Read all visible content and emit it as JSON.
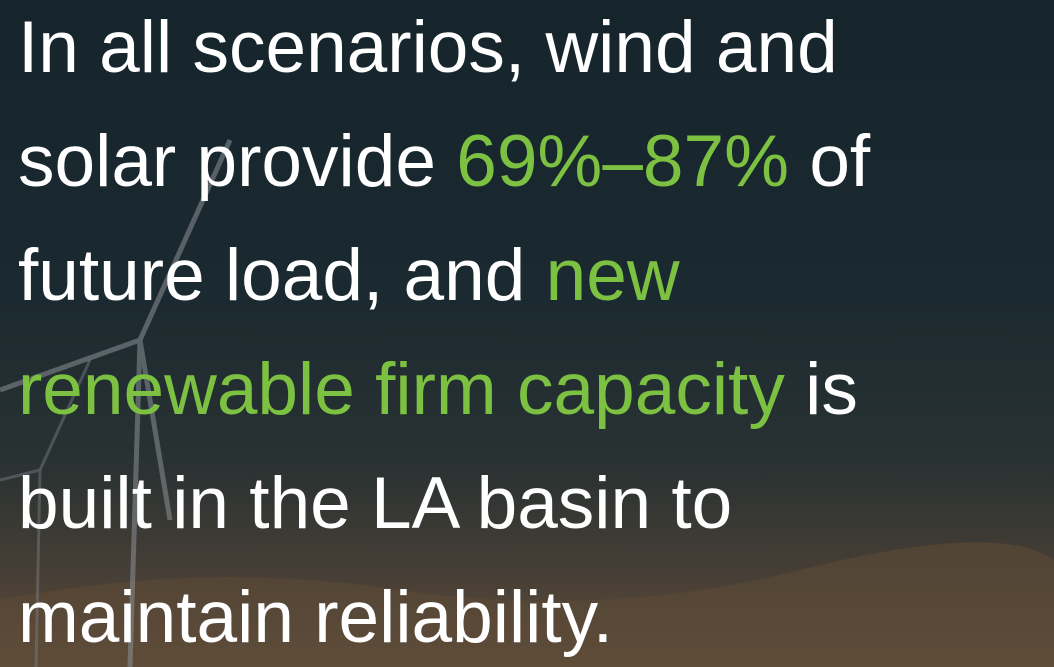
{
  "slide": {
    "lines": [
      [
        {
          "text": "In all scenarios, wind and",
          "color": "#ffffff"
        }
      ],
      [
        {
          "text": "solar provide ",
          "color": "#ffffff"
        },
        {
          "text": "69%–87%",
          "color": "#7dc142"
        },
        {
          "text": " of",
          "color": "#ffffff"
        }
      ],
      [
        {
          "text": "future load, and ",
          "color": "#ffffff"
        },
        {
          "text": "new",
          "color": "#7dc142"
        }
      ],
      [
        {
          "text": "renewable firm capacity",
          "color": "#7dc142"
        },
        {
          "text": " is",
          "color": "#ffffff"
        }
      ],
      [
        {
          "text": "built in the LA basin to",
          "color": "#ffffff"
        }
      ],
      [
        {
          "text": "maintain reliability.",
          "color": "#ffffff"
        }
      ]
    ]
  }
}
